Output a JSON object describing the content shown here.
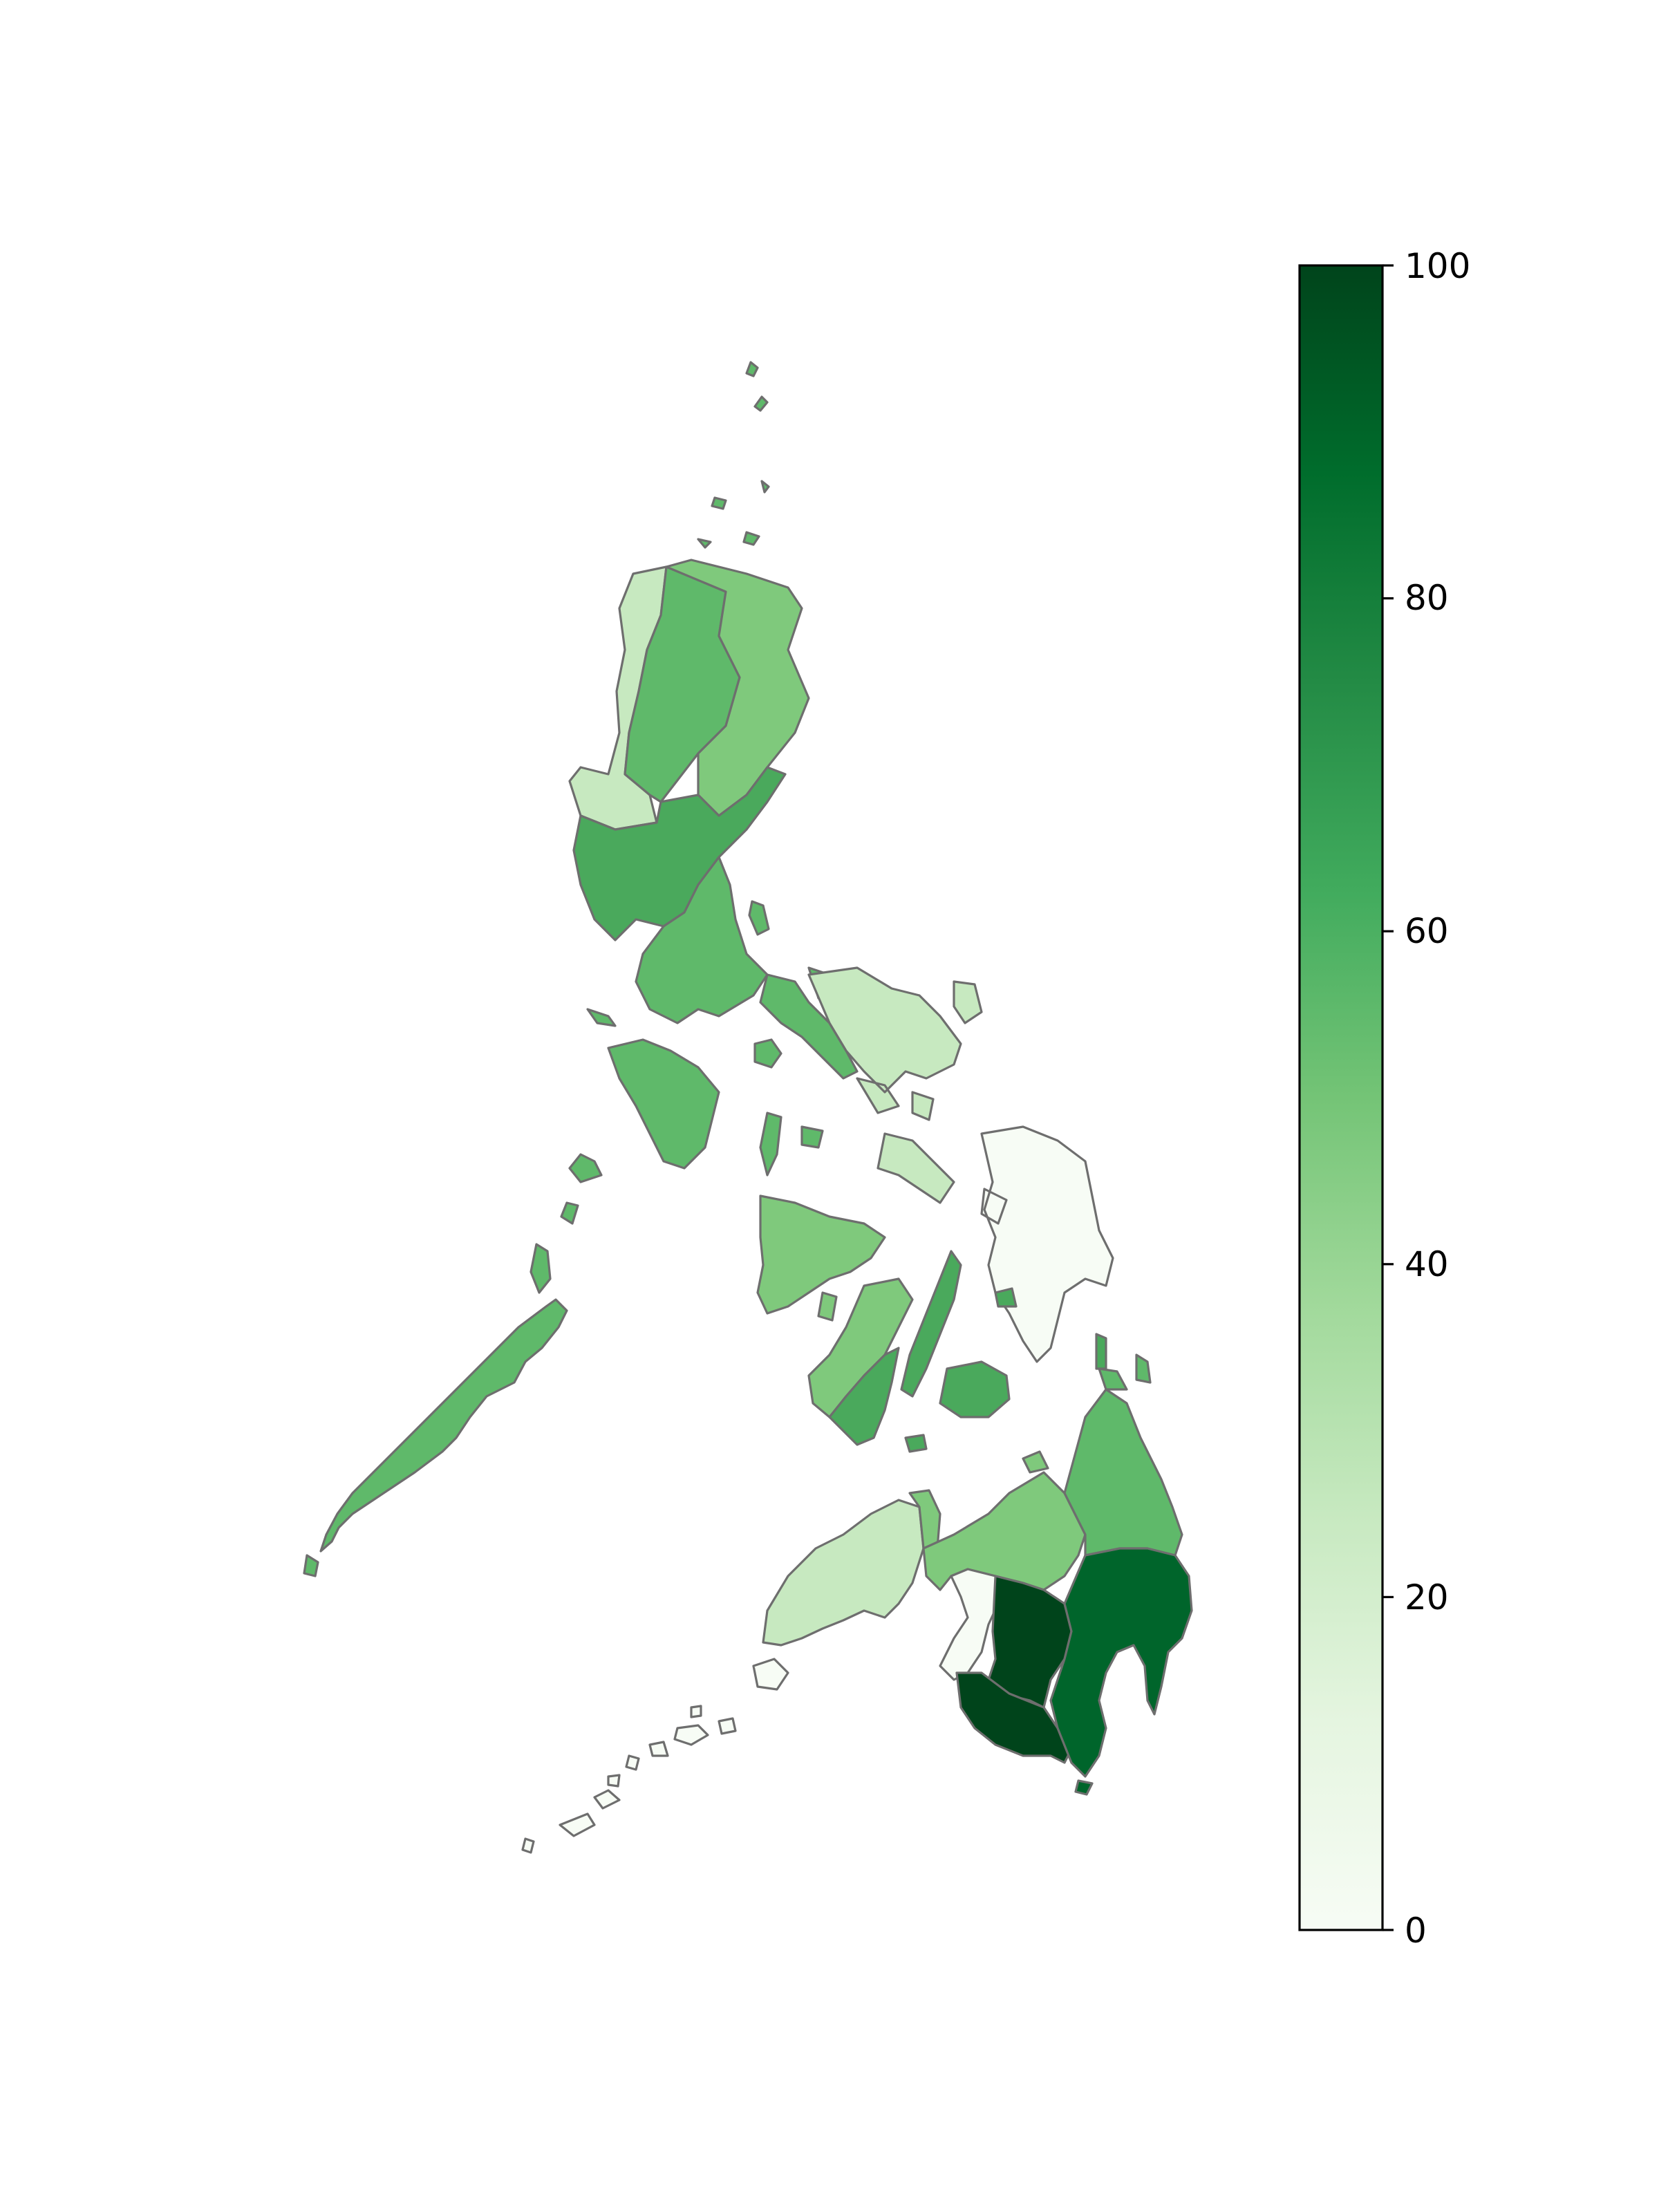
{
  "map": {
    "type": "choropleth",
    "colormap": "Greens",
    "colors": {
      "c0": "#f7fcf5",
      "c25": "#c7e9c0",
      "c45": "#7fc97c",
      "c55": "#5fb96a",
      "c60": "#4aa95c",
      "c65": "#3fa458",
      "c90": "#00652b",
      "c98": "#00441b",
      "border": "#6e6e6e"
    }
  },
  "chart_data": {
    "type": "heatmap",
    "title": "",
    "colorbar": {
      "min": 0,
      "max": 100,
      "ticks": [
        0,
        20,
        40,
        60,
        80,
        100
      ],
      "tick_labels": [
        "0",
        "20",
        "40",
        "60",
        "80",
        "100"
      ],
      "placement": "right"
    }
  }
}
